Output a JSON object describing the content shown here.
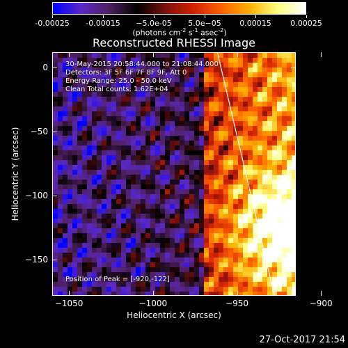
{
  "chart_data": {
    "type": "heatmap",
    "title": "Reconstructed RHESSI Image",
    "xlabel": "Heliocentric X (arcsec)",
    "ylabel": "Heliocentric Y (arcsec)",
    "xlim": [
      -1060,
      -915
    ],
    "ylim": [
      -178,
      12
    ],
    "xticks": [
      -1050,
      -1000,
      -950,
      -900
    ],
    "yticks": [
      0,
      -50,
      -100,
      -150
    ],
    "xtick_labels": [
      "−1050",
      "−1000",
      "−950",
      "−900"
    ],
    "ytick_labels": [
      "0",
      "−50",
      "−100",
      "−150"
    ],
    "colorbar": {
      "range": [
        -0.00025,
        0.00025
      ],
      "tick_values": [
        -0.00025,
        -0.00015,
        -5e-05,
        5e-05,
        0.00015,
        0.00025
      ],
      "tick_labels": [
        "-0.00025",
        "-0.00015",
        "−5.0e-05",
        "5.0e−05",
        "0.00015",
        "0.00025"
      ],
      "unit_prefix": "(photons cm",
      "unit_exp1": "-2",
      "unit_mid": " s",
      "unit_exp2": "-1",
      "unit_suffix": " asec",
      "unit_exp3": "-2",
      "unit_close": ")"
    },
    "annotations": [
      "30-May-2015 20:58:44.000 to 21:08:44.000",
      "Detectors: 3F 5F 6F 7F 8F 9F, Att 0",
      "Energy Range: 25.0 - 50.0 keV",
      "Clean    Total counts: 1.62E+04"
    ],
    "peak_label": "Position of Peak = [-920,-122]",
    "peak_position": [
      -920,
      -122
    ],
    "limb_line": [
      [
        -962,
        12
      ],
      [
        -928,
        -178
      ]
    ],
    "colors": {
      "background": "#000000",
      "line": "#ffffff",
      "colormap": [
        "#0000ff",
        "#5a28c8",
        "#502060",
        "#000000",
        "#7a1010",
        "#d02000",
        "#ff6000",
        "#ffb000",
        "#ffff80",
        "#ffffff"
      ]
    }
  },
  "footer": {
    "timestamp": "27-Oct-2017 21:54"
  }
}
